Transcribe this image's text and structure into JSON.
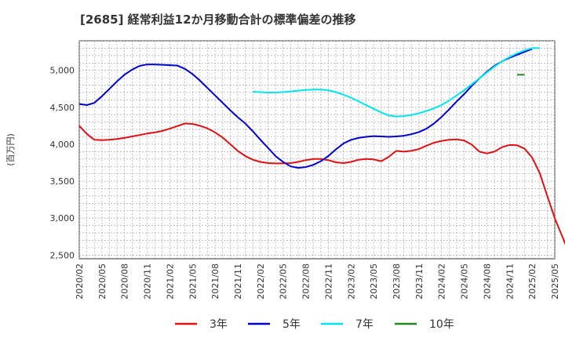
{
  "chart_data": {
    "type": "line",
    "title": "[2685]  経常利益12か月移動合計の標準偏差の推移",
    "ylabel": "(百万円)",
    "xlabel": "",
    "ylim": [
      2450,
      5400
    ],
    "yticks": [
      2500,
      3000,
      3500,
      4000,
      4500,
      5000
    ],
    "ytick_labels": [
      "2,500",
      "3,000",
      "3,500",
      "4,000",
      "4,500",
      "5,000"
    ],
    "xticks": [
      "2020/02",
      "2020/05",
      "2020/08",
      "2020/11",
      "2021/02",
      "2021/05",
      "2021/08",
      "2021/11",
      "2022/02",
      "2022/05",
      "2022/08",
      "2022/11",
      "2023/02",
      "2023/05",
      "2023/08",
      "2023/11",
      "2024/02",
      "2024/05",
      "2024/08",
      "2024/11",
      "2025/02",
      "2025/05"
    ],
    "grid": true,
    "legend_position": "bottom",
    "series": [
      {
        "name": "3年",
        "color": "#dd1111",
        "start": "2020/02",
        "values": [
          4250,
          4140,
          4060,
          4055,
          4060,
          4070,
          4085,
          4105,
          4125,
          4145,
          4160,
          4180,
          4210,
          4245,
          4280,
          4275,
          4250,
          4215,
          4160,
          4090,
          4000,
          3910,
          3840,
          3790,
          3760,
          3745,
          3740,
          3740,
          3745,
          3760,
          3785,
          3800,
          3800,
          3785,
          3755,
          3745,
          3760,
          3790,
          3800,
          3795,
          3770,
          3830,
          3910,
          3900,
          3910,
          3935,
          3980,
          4020,
          4045,
          4060,
          4065,
          4050,
          3995,
          3900,
          3875,
          3900,
          3960,
          3990,
          3985,
          3940,
          3820,
          3610,
          3300,
          3000,
          2750,
          2500
        ]
      },
      {
        "name": "5年",
        "color": "#0000cc",
        "start": "2020/02",
        "values": [
          4545,
          4530,
          4560,
          4650,
          4750,
          4850,
          4940,
          5010,
          5060,
          5080,
          5080,
          5075,
          5070,
          5065,
          5020,
          4950,
          4860,
          4760,
          4660,
          4560,
          4460,
          4365,
          4280,
          4175,
          4060,
          3950,
          3840,
          3760,
          3700,
          3680,
          3690,
          3720,
          3770,
          3840,
          3930,
          4010,
          4060,
          4085,
          4100,
          4110,
          4105,
          4100,
          4105,
          4115,
          4135,
          4165,
          4210,
          4280,
          4370,
          4470,
          4580,
          4680,
          4790,
          4890,
          4980,
          5060,
          5120,
          5170,
          5210,
          5250,
          5290
        ]
      },
      {
        "name": "7年",
        "color": "#00e5ee",
        "start": "2022/01",
        "values": [
          4710,
          4705,
          4700,
          4700,
          4705,
          4715,
          4725,
          4735,
          4740,
          4740,
          4730,
          4705,
          4670,
          4630,
          4580,
          4530,
          4480,
          4430,
          4390,
          4375,
          4380,
          4395,
          4420,
          4450,
          4485,
          4530,
          4590,
          4660,
          4730,
          4810,
          4890,
          4970,
          5050,
          5120,
          5180,
          5230,
          5270,
          5300,
          5300
        ]
      },
      {
        "name": "10年",
        "color": "#228822",
        "start": "2024/12",
        "values": [
          4940,
          4940
        ]
      }
    ]
  }
}
